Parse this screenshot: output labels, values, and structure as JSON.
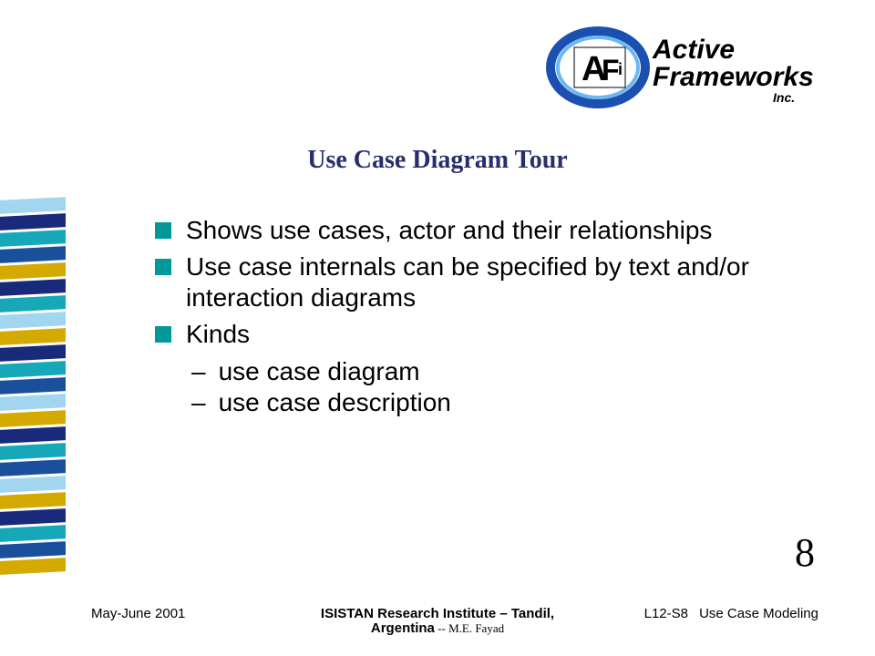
{
  "logo": {
    "company_top": "Active",
    "company_bottom": "Frameworks",
    "suffix": "Inc.",
    "monogram_a": "A",
    "monogram_f": "F",
    "monogram_i": "i",
    "ring_outer_color": "#1b4fb0",
    "ring_inner_color": "#2a7fd8",
    "text_color": "#000000"
  },
  "title": "Use Case Diagram Tour",
  "bullets": [
    {
      "text": "Shows use cases, actor and their relationships",
      "sub": []
    },
    {
      "text": "Use case internals can be specified by text and/or interaction diagrams",
      "sub": []
    },
    {
      "text": "Kinds",
      "sub": [
        "use case diagram",
        "use case description"
      ]
    }
  ],
  "slide_number": "8",
  "footer": {
    "left": "May-June 2001",
    "center_line1": "ISISTAN Research Institute – Tandil,",
    "center_line2_bold": "Argentina",
    "center_line2_small": " -- M.E. Fayad",
    "right1": "L12-S8",
    "right2": "Use Case Modeling"
  },
  "stripe_colors": [
    "#a1d5f0",
    "#1a2a7a",
    "#16a8b8",
    "#1a4f9c",
    "#d4aa00",
    "#1a2a7a",
    "#16a8b8",
    "#a1d5f0",
    "#d4aa00",
    "#1a2a7a",
    "#16a8b8",
    "#1a4f9c",
    "#a1d5f0",
    "#d4aa00",
    "#1a2a7a",
    "#16a8b8",
    "#1a4f9c",
    "#a1d5f0",
    "#d4aa00",
    "#1a2a7a",
    "#16a8b8",
    "#1a4f9c",
    "#d4aa00"
  ],
  "colors": {
    "bullet_square": "#009898",
    "title_color": "#272f6b",
    "background": "#ffffff",
    "body_text": "#000000"
  },
  "typography": {
    "title_font": "Times New Roman",
    "title_size_pt": 21,
    "body_font": "Arial",
    "body_size_pt": 21,
    "footer_size_pt": 11,
    "slidenum_size_pt": 33
  }
}
